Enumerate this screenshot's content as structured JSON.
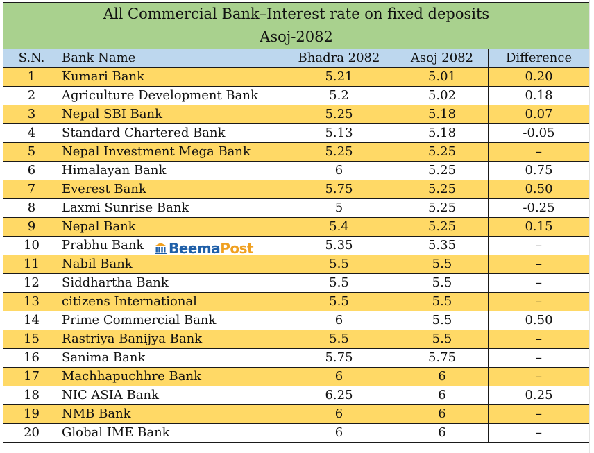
{
  "title": "All Commercial Bank–Interest rate on fixed deposits",
  "subtitle": "Asoj-2082",
  "headers": {
    "sn": "S.N.",
    "bank": "Bank Name",
    "prev": "Bhadra 2082",
    "curr": "Asoj 2082",
    "diff": "Difference"
  },
  "rows": [
    {
      "sn": "1",
      "bank": "Kumari Bank",
      "prev": "5.21",
      "curr": "5.01",
      "diff": "0.20"
    },
    {
      "sn": "2",
      "bank": "Agriculture Development Bank",
      "prev": "5.2",
      "curr": "5.02",
      "diff": "0.18"
    },
    {
      "sn": "3",
      "bank": "Nepal SBI Bank",
      "prev": "5.25",
      "curr": "5.18",
      "diff": "0.07"
    },
    {
      "sn": "4",
      "bank": "Standard Chartered Bank",
      "prev": "5.13",
      "curr": "5.18",
      "diff": "-0.05"
    },
    {
      "sn": "5",
      "bank": "Nepal Investment Mega Bank",
      "prev": "5.25",
      "curr": "5.25",
      "diff": "–"
    },
    {
      "sn": "6",
      "bank": "Himalayan Bank",
      "prev": "6",
      "curr": "5.25",
      "diff": "0.75"
    },
    {
      "sn": "7",
      "bank": "Everest Bank",
      "prev": "5.75",
      "curr": "5.25",
      "diff": "0.50"
    },
    {
      "sn": "8",
      "bank": "Laxmi Sunrise Bank",
      "prev": "5",
      "curr": "5.25",
      "diff": "-0.25"
    },
    {
      "sn": "9",
      "bank": "Nepal Bank",
      "prev": "5.4",
      "curr": "5.25",
      "diff": "0.15"
    },
    {
      "sn": "10",
      "bank": "Prabhu Bank",
      "prev": "5.35",
      "curr": "5.35",
      "diff": "–"
    },
    {
      "sn": "11",
      "bank": "Nabil Bank",
      "prev": "5.5",
      "curr": "5.5",
      "diff": "–"
    },
    {
      "sn": "12",
      "bank": "Siddhartha Bank",
      "prev": "5.5",
      "curr": "5.5",
      "diff": "–"
    },
    {
      "sn": "13",
      "bank": "citizens International",
      "prev": "5.5",
      "curr": "5.5",
      "diff": "–"
    },
    {
      "sn": "14",
      "bank": "Prime Commercial Bank",
      "prev": "6",
      "curr": "5.5",
      "diff": "0.50"
    },
    {
      "sn": "15",
      "bank": "Rastriya Banijya Bank",
      "prev": "5.5",
      "curr": "5.5",
      "diff": "–"
    },
    {
      "sn": "16",
      "bank": "Sanima Bank",
      "prev": "5.75",
      "curr": "5.75",
      "diff": "–"
    },
    {
      "sn": "17",
      "bank": "Machhapuchhre Bank",
      "prev": "6",
      "curr": "6",
      "diff": "–"
    },
    {
      "sn": "18",
      "bank": "NIC ASIA Bank",
      "prev": "6.25",
      "curr": "6",
      "diff": "0.25"
    },
    {
      "sn": "19",
      "bank": "NMB Bank",
      "prev": "6",
      "curr": "6",
      "diff": "–"
    },
    {
      "sn": "20",
      "bank": "Global IME Bank",
      "prev": "6",
      "curr": "6",
      "diff": "–"
    }
  ],
  "watermark": {
    "part1": "Beema",
    "part2": "Post",
    "icon": "bank-building-icon"
  },
  "colors": {
    "title_bg": "#a9d18e",
    "header_bg": "#bdd7ee",
    "band_bg": "#ffd966",
    "logo_blue": "#1f5fa8",
    "logo_orange": "#f0a020"
  }
}
